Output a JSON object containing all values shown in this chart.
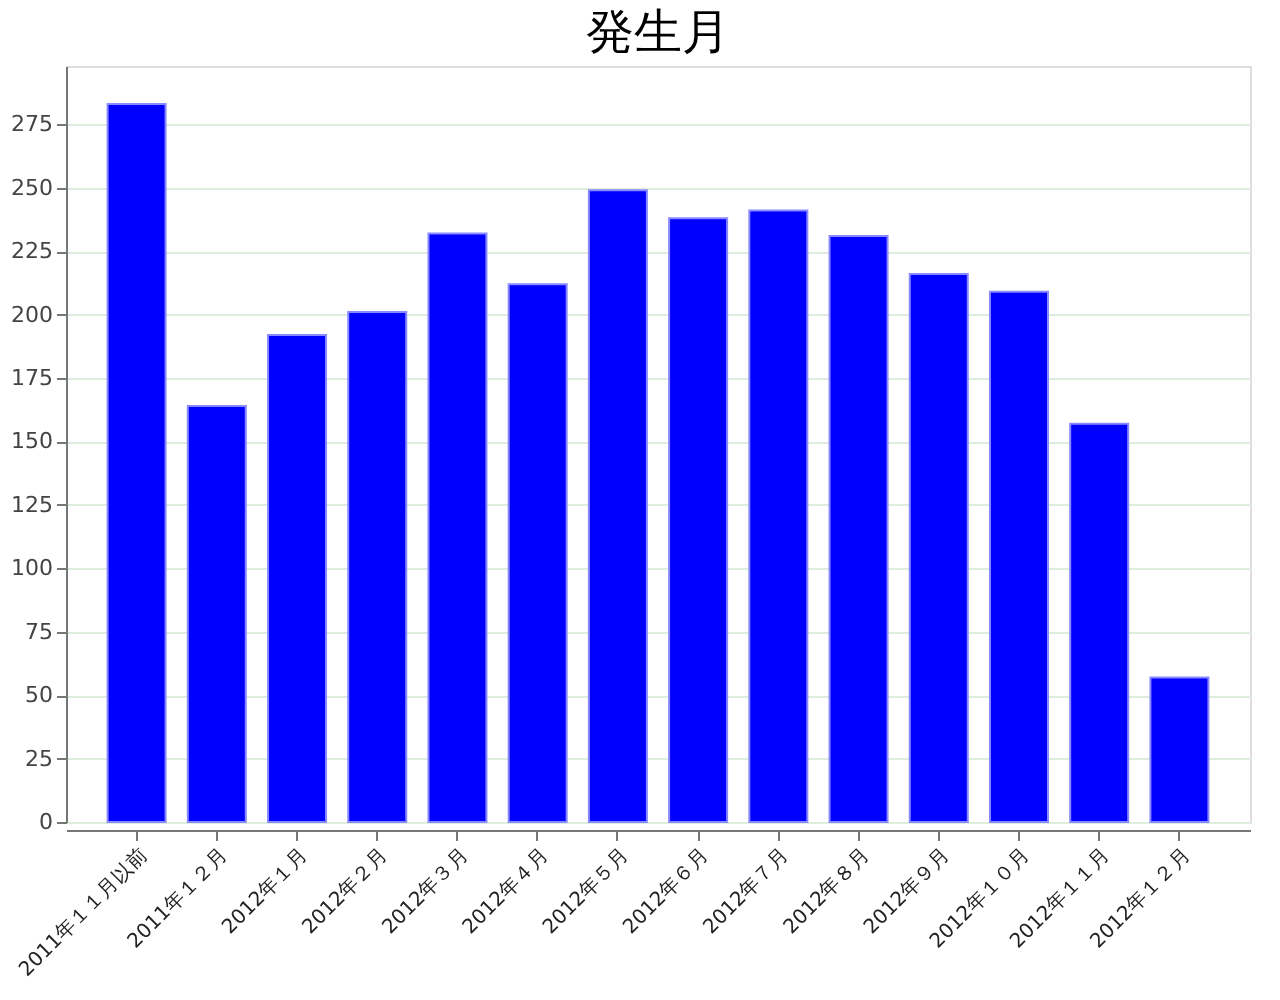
{
  "chart_data": {
    "type": "bar",
    "title": "発生月",
    "categories": [
      "2011年１１月以前",
      "2011年１２月",
      "2012年１月",
      "2012年２月",
      "2012年３月",
      "2012年４月",
      "2012年５月",
      "2012年６月",
      "2012年７月",
      "2012年８月",
      "2012年９月",
      "2012年１０月",
      "2012年１１月",
      "2012年１２月"
    ],
    "values": [
      283,
      164,
      192,
      201,
      232,
      212,
      249,
      238,
      241,
      231,
      216,
      209,
      157,
      57
    ],
    "color": "#0000ff",
    "ylim": [
      0,
      298
    ],
    "yticks": [
      0,
      25,
      50,
      75,
      100,
      125,
      150,
      175,
      200,
      225,
      250,
      275
    ],
    "grid": "y"
  }
}
